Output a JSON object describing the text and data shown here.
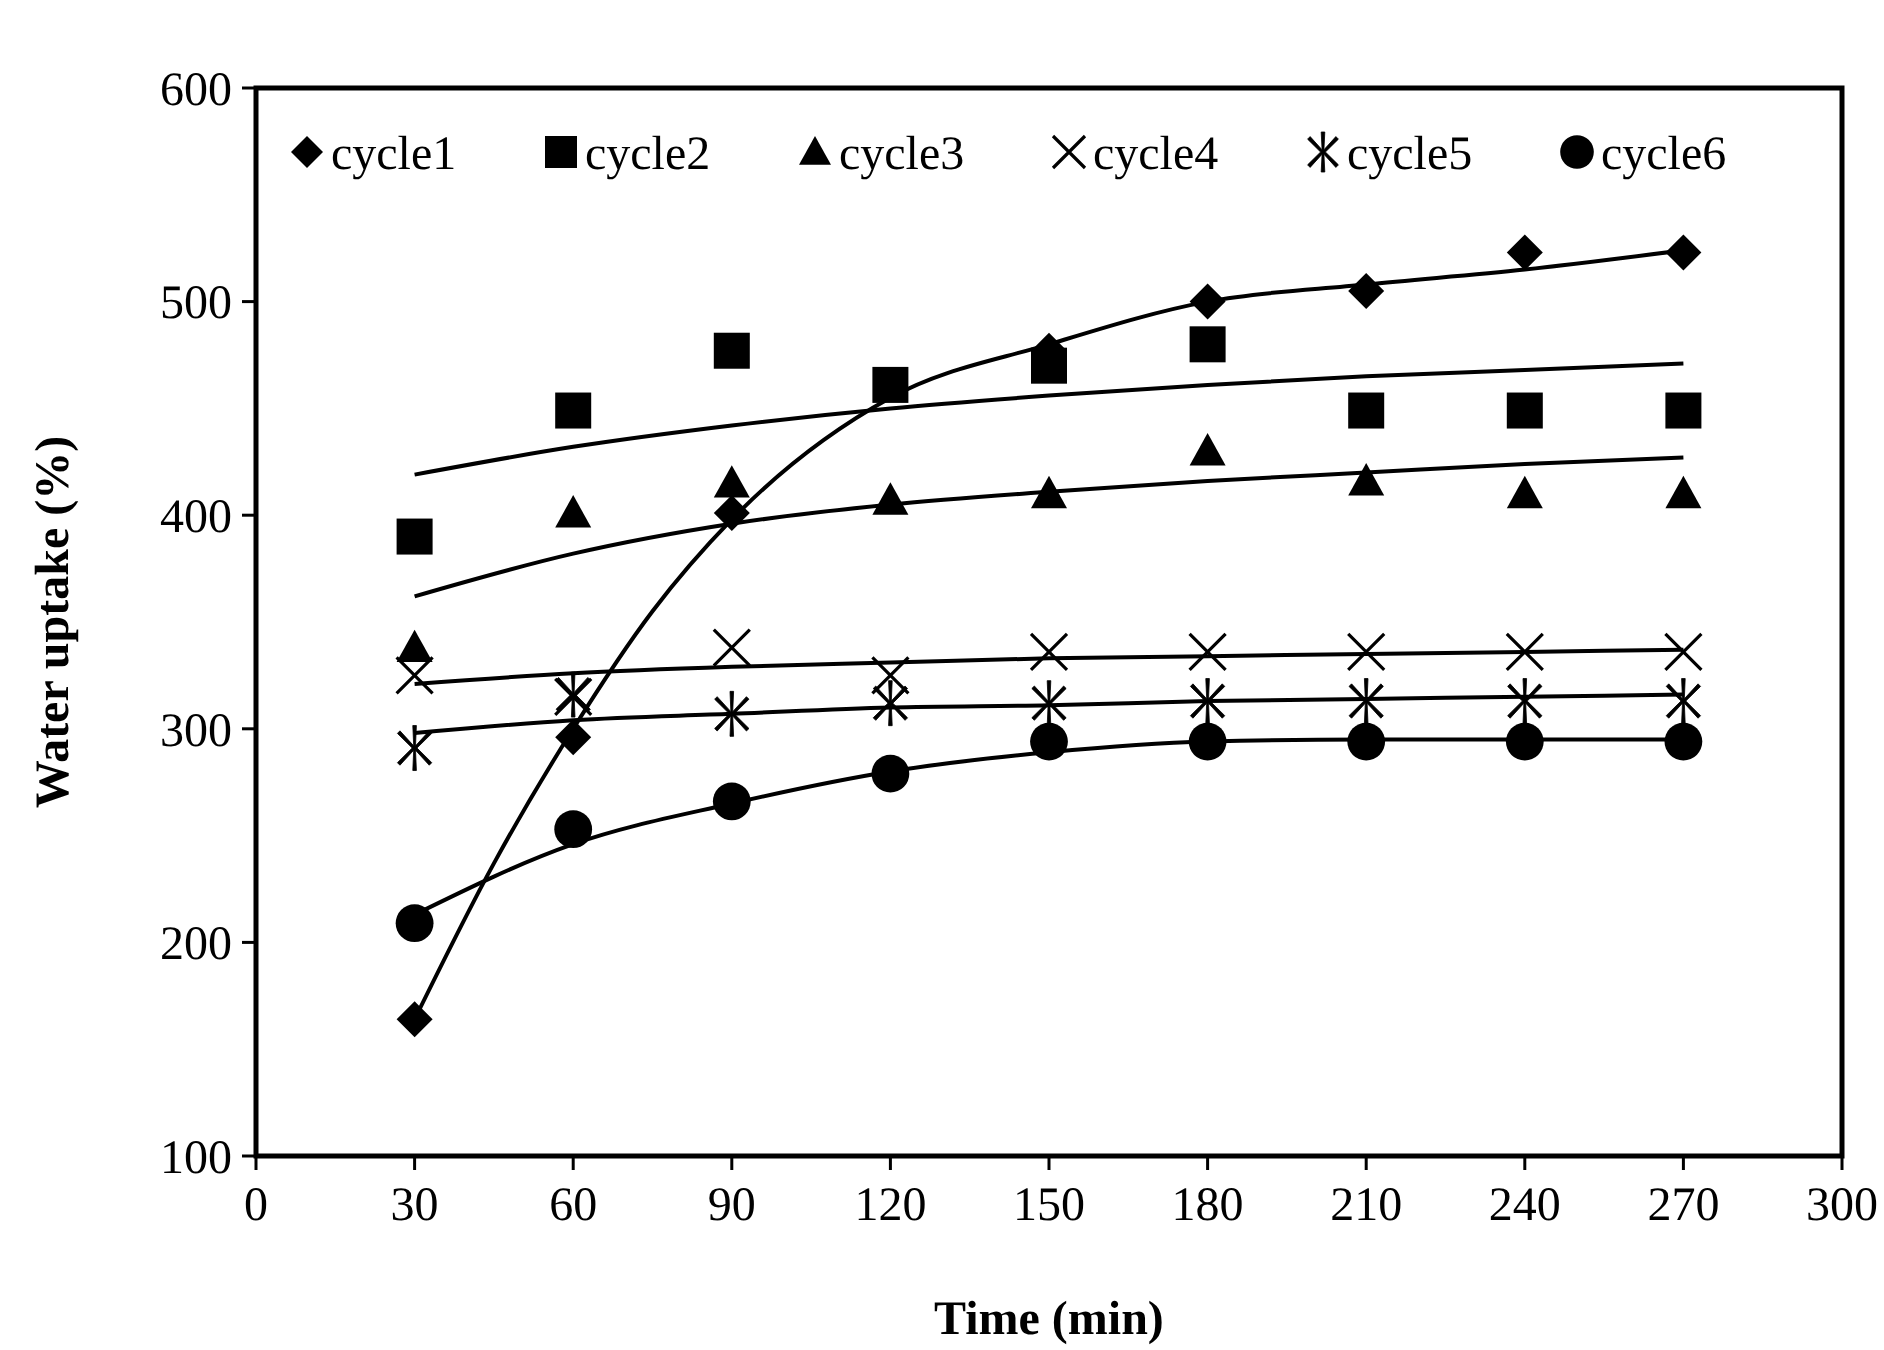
{
  "chart_data": {
    "type": "scatter",
    "xlabel": "Time (min)",
    "ylabel": "Water uptake (%)",
    "x": [
      30,
      60,
      90,
      120,
      150,
      180,
      210,
      240,
      270
    ],
    "xlim": [
      0,
      300
    ],
    "xticks": [
      0,
      30,
      60,
      90,
      120,
      150,
      180,
      210,
      240,
      270,
      300
    ],
    "ylim": [
      100,
      600
    ],
    "yticks": [
      100,
      200,
      300,
      400,
      500,
      600
    ],
    "grid": false,
    "legend": "top",
    "series": [
      {
        "name": "cycle1",
        "color": "#000000",
        "marker": "diamond",
        "values": [
          164,
          296,
          401,
          null,
          477,
          500,
          505,
          523,
          523
        ]
      },
      {
        "name": "cycle2",
        "color": "#000000",
        "marker": "square",
        "values": [
          390,
          449,
          477,
          461,
          470,
          480,
          449,
          449,
          449
        ]
      },
      {
        "name": "cycle3",
        "color": "#000000",
        "marker": "triangle",
        "values": [
          338,
          401,
          415,
          407,
          410,
          430,
          416,
          410,
          410
        ]
      },
      {
        "name": "cycle4",
        "color": "#000000",
        "marker": "cross",
        "values": [
          325,
          315,
          338,
          325,
          336,
          336,
          336,
          336,
          336
        ]
      },
      {
        "name": "cycle5",
        "color": "#000000",
        "marker": "star",
        "values": [
          291,
          316,
          307,
          312,
          312,
          313,
          313,
          313,
          313
        ]
      },
      {
        "name": "cycle6",
        "color": "#000000",
        "marker": "circle",
        "values": [
          209,
          253,
          266,
          279,
          294,
          294,
          294,
          294,
          294
        ]
      },
      {
        "type": "line",
        "color": "#000000",
        "x": [
          30,
          45,
          60,
          75,
          90,
          120,
          150,
          180,
          210,
          240,
          270
        ],
        "values": [
          164,
          237,
          300,
          355,
          398,
          455,
          480,
          500,
          508,
          515,
          524
        ]
      },
      {
        "type": "line",
        "color": "#000000",
        "x": [
          30,
          60,
          90,
          120,
          150,
          180,
          210,
          240,
          270
        ],
        "values": [
          419,
          432,
          442,
          450,
          456,
          461,
          465,
          468,
          471
        ]
      },
      {
        "type": "line",
        "color": "#000000",
        "x": [
          30,
          60,
          90,
          120,
          150,
          180,
          210,
          240,
          270
        ],
        "values": [
          362,
          382,
          396,
          405,
          411,
          416,
          420,
          424,
          427
        ]
      },
      {
        "type": "line",
        "color": "#000000",
        "x": [
          30,
          60,
          90,
          120,
          150,
          180,
          210,
          240,
          270
        ],
        "values": [
          321,
          326,
          329,
          331,
          333,
          334,
          335,
          336,
          337
        ]
      },
      {
        "type": "line",
        "color": "#000000",
        "x": [
          30,
          60,
          90,
          120,
          150,
          180,
          210,
          240,
          270
        ],
        "values": [
          298,
          304,
          307,
          310,
          311,
          313,
          314,
          315,
          316
        ]
      },
      {
        "type": "line",
        "color": "#000000",
        "x": [
          30,
          60,
          90,
          120,
          150,
          180,
          210,
          240,
          270
        ],
        "values": [
          213,
          246,
          265,
          280,
          289,
          294,
          295,
          295,
          295
        ]
      }
    ]
  }
}
